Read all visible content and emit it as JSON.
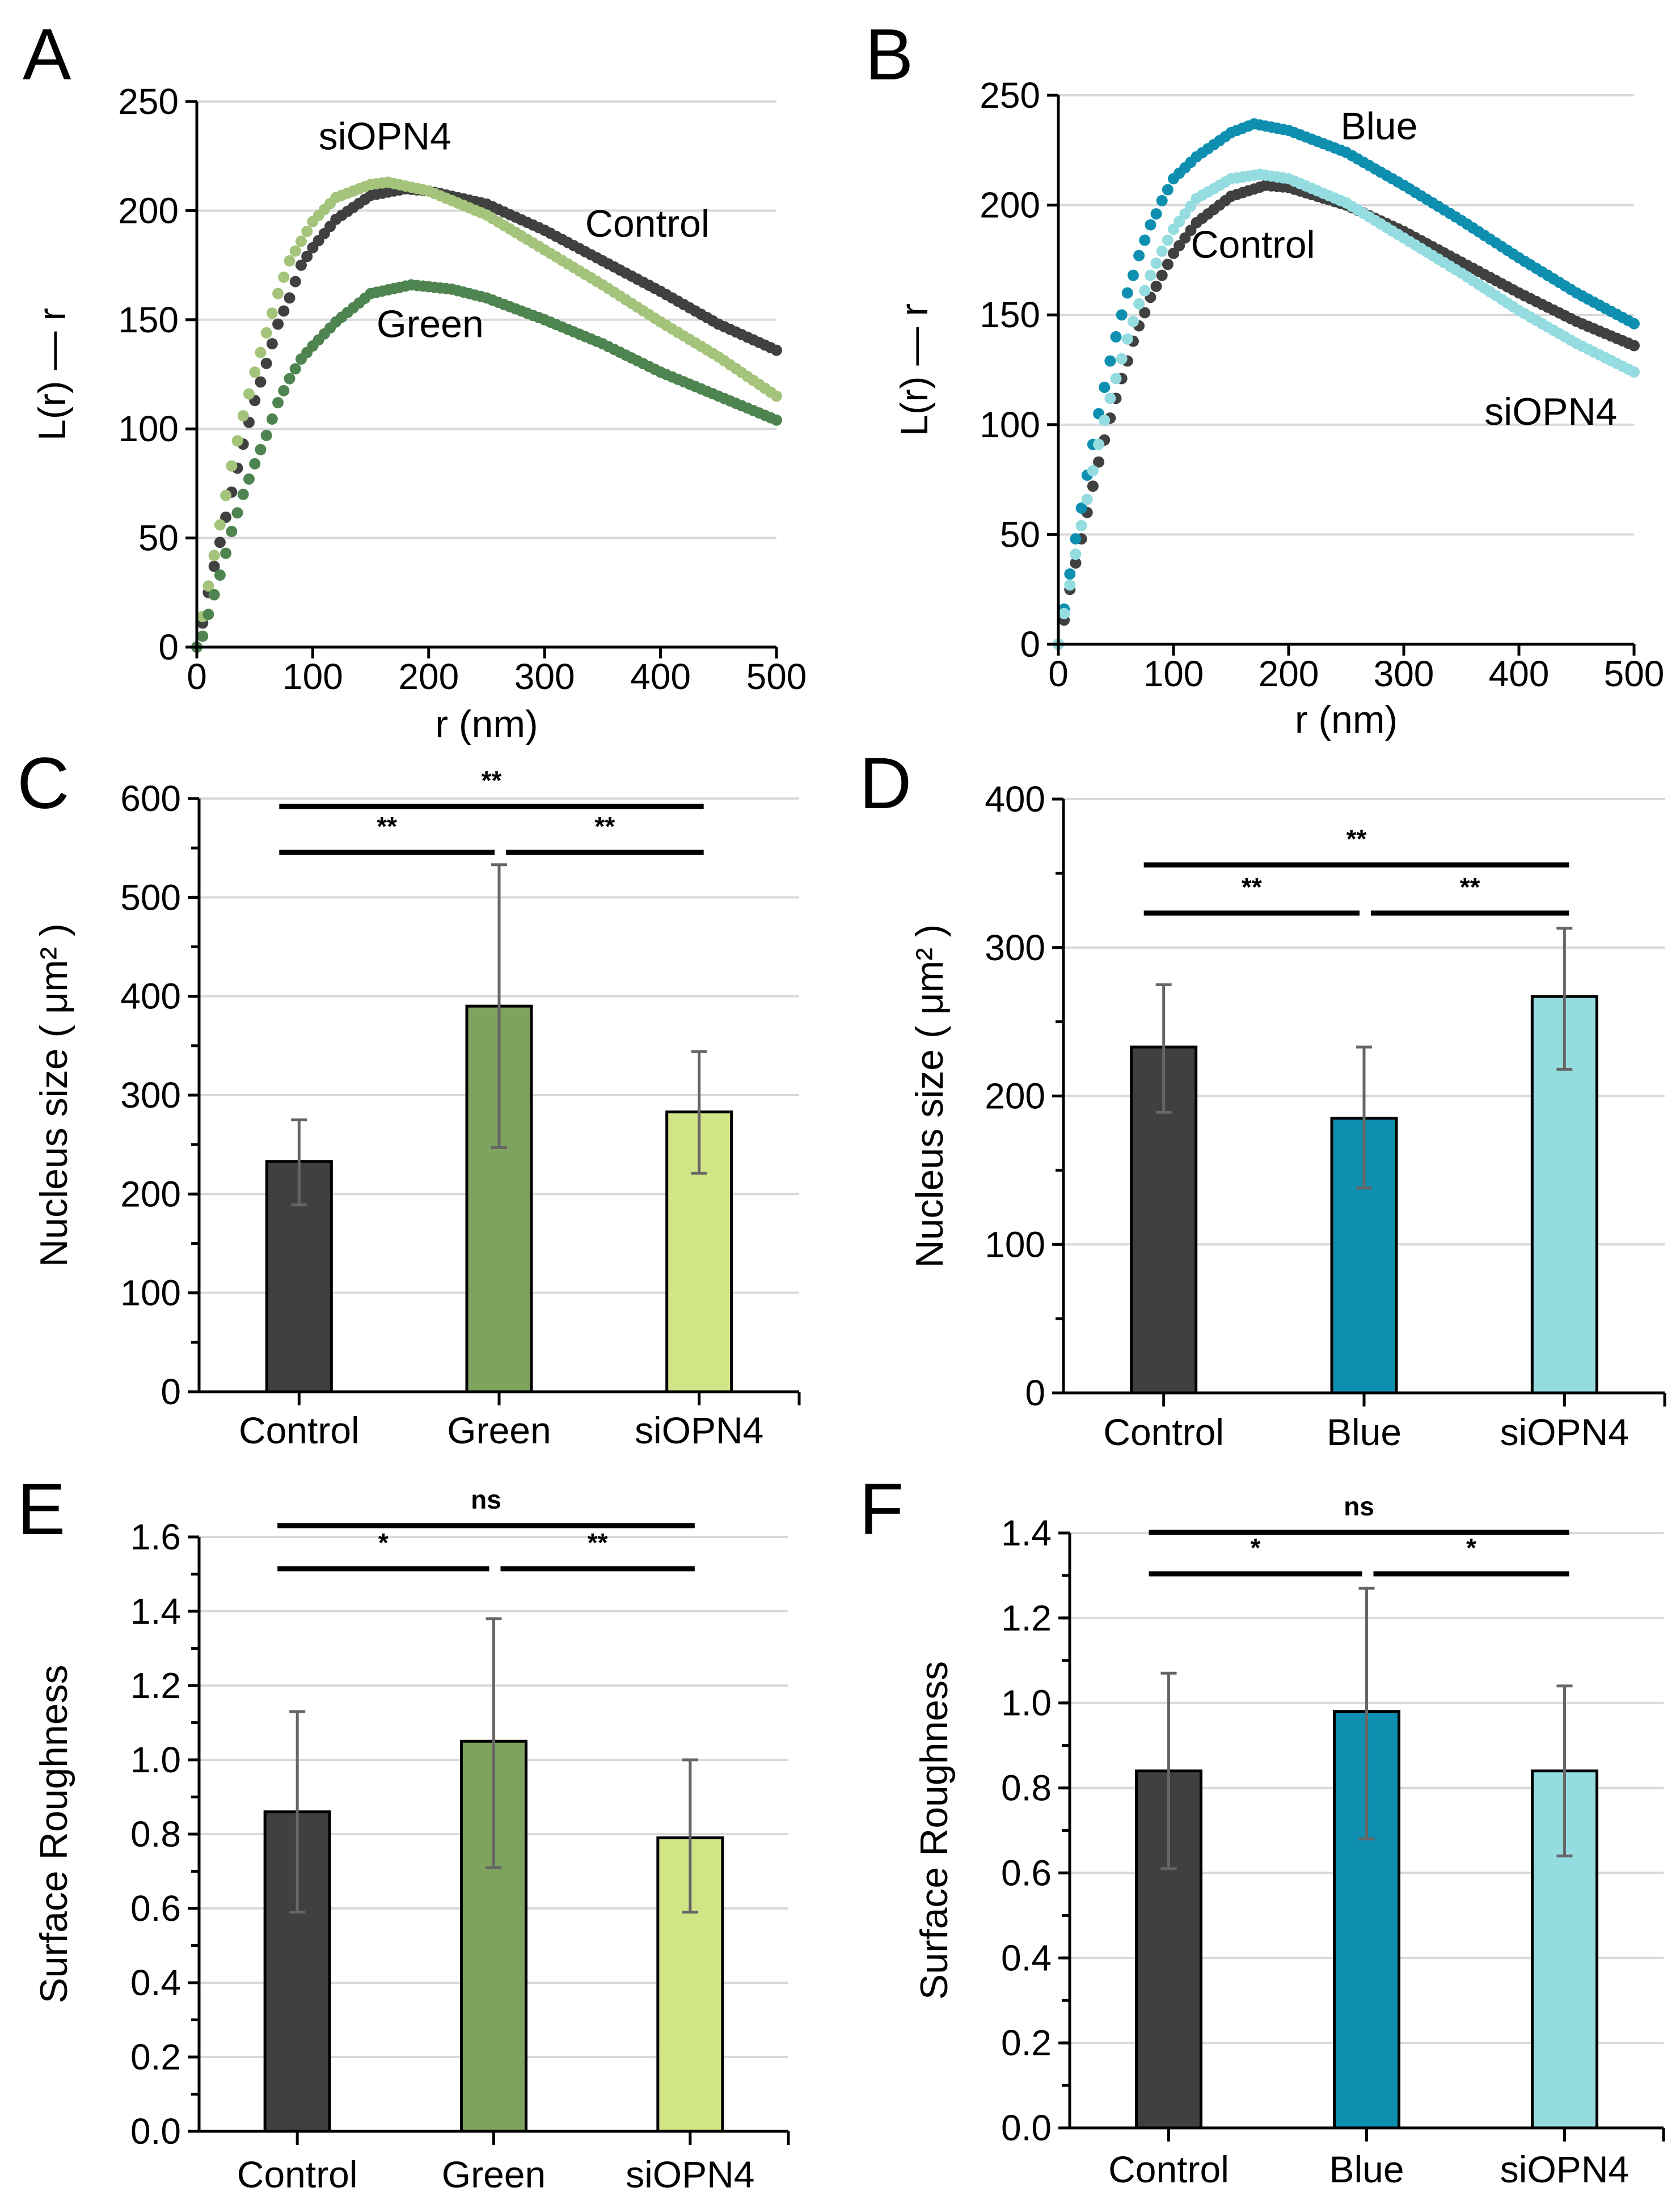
{
  "figure": {
    "panels": [
      "A",
      "B",
      "C",
      "D",
      "E",
      "F"
    ]
  },
  "chart_data": [
    {
      "id": "A",
      "type": "scatter",
      "panel_label": "A",
      "title": "",
      "xlabel": "r (nm)",
      "ylabel": "L(r) — r",
      "xlim": [
        0,
        500
      ],
      "ylim": [
        0,
        250
      ],
      "xticks": [
        0,
        100,
        200,
        300,
        400,
        500
      ],
      "yticks": [
        0,
        50,
        100,
        150,
        200,
        250
      ],
      "grid": true,
      "x_step": 5,
      "series": [
        {
          "name": "Control",
          "color": "#404040",
          "points": [
            [
              0,
              0
            ],
            [
              5,
              11
            ],
            [
              10,
              25
            ],
            [
              15,
              37
            ],
            [
              20,
              48
            ],
            [
              30,
              71
            ],
            [
              40,
              93
            ],
            [
              50,
              113
            ],
            [
              60,
              130
            ],
            [
              70,
              148
            ],
            [
              80,
              160
            ],
            [
              90,
              175
            ],
            [
              100,
              183
            ],
            [
              120,
              196
            ],
            [
              150,
              207
            ],
            [
              180,
              210
            ],
            [
              200,
              209
            ],
            [
              250,
              203
            ],
            [
              300,
              191
            ],
            [
              350,
              177
            ],
            [
              400,
              163
            ],
            [
              450,
              148
            ],
            [
              500,
              136
            ]
          ]
        },
        {
          "name": "siOPN4",
          "color": "#A3C47A",
          "points": [
            [
              0,
              0
            ],
            [
              5,
              14
            ],
            [
              10,
              28
            ],
            [
              20,
              56
            ],
            [
              30,
              83
            ],
            [
              40,
              106
            ],
            [
              50,
              126
            ],
            [
              60,
              144
            ],
            [
              70,
              162
            ],
            [
              80,
              177
            ],
            [
              90,
              186
            ],
            [
              100,
              195
            ],
            [
              120,
              206
            ],
            [
              150,
              212
            ],
            [
              165,
              213
            ],
            [
              200,
              209
            ],
            [
              250,
              198
            ],
            [
              300,
              182
            ],
            [
              350,
              166
            ],
            [
              400,
              149
            ],
            [
              450,
              133
            ],
            [
              500,
              115
            ]
          ]
        },
        {
          "name": "Green",
          "color": "#4E8450",
          "points": [
            [
              0,
              0
            ],
            [
              5,
              5
            ],
            [
              10,
              15
            ],
            [
              15,
              24
            ],
            [
              20,
              33
            ],
            [
              25,
              43
            ],
            [
              30,
              53
            ],
            [
              40,
              70
            ],
            [
              50,
              84
            ],
            [
              60,
              97
            ],
            [
              70,
              112
            ],
            [
              80,
              123
            ],
            [
              90,
              132
            ],
            [
              100,
              138
            ],
            [
              120,
              149
            ],
            [
              150,
              162
            ],
            [
              185,
              166
            ],
            [
              220,
              164
            ],
            [
              250,
              160
            ],
            [
              300,
              150
            ],
            [
              350,
              139
            ],
            [
              400,
              126
            ],
            [
              450,
              115
            ],
            [
              500,
              104
            ]
          ]
        }
      ],
      "annotations": [
        {
          "text": "siOPN4",
          "x": 105,
          "y": 228
        },
        {
          "text": "Control",
          "x": 335,
          "y": 188
        },
        {
          "text": "Green",
          "x": 155,
          "y": 142
        }
      ]
    },
    {
      "id": "B",
      "type": "scatter",
      "panel_label": "B",
      "title": "",
      "xlabel": "r (nm)",
      "ylabel": "L(r) — r",
      "xlim": [
        0,
        500
      ],
      "ylim": [
        0,
        250
      ],
      "xticks": [
        0,
        100,
        200,
        300,
        400,
        500
      ],
      "yticks": [
        0,
        50,
        100,
        150,
        200,
        250
      ],
      "grid": true,
      "x_step": 5,
      "series": [
        {
          "name": "Control",
          "color": "#404040",
          "points": [
            [
              0,
              0
            ],
            [
              5,
              11
            ],
            [
              10,
              25
            ],
            [
              15,
              37
            ],
            [
              20,
              48
            ],
            [
              25,
              60
            ],
            [
              30,
              72
            ],
            [
              35,
              83
            ],
            [
              40,
              93
            ],
            [
              45,
              103
            ],
            [
              50,
              112
            ],
            [
              55,
              121
            ],
            [
              60,
              129
            ],
            [
              65,
              138
            ],
            [
              70,
              145
            ],
            [
              75,
              151
            ],
            [
              80,
              158
            ],
            [
              90,
              168
            ],
            [
              100,
              178
            ],
            [
              120,
              192
            ],
            [
              150,
              204
            ],
            [
              180,
              209
            ],
            [
              200,
              208
            ],
            [
              250,
              200
            ],
            [
              300,
              188
            ],
            [
              350,
              174
            ],
            [
              400,
              160
            ],
            [
              450,
              147
            ],
            [
              500,
              136
            ]
          ]
        },
        {
          "name": "Blue",
          "color": "#0E8FB0",
          "points": [
            [
              0,
              0
            ],
            [
              5,
              16
            ],
            [
              10,
              32
            ],
            [
              15,
              48
            ],
            [
              20,
              62
            ],
            [
              25,
              77
            ],
            [
              30,
              91
            ],
            [
              35,
              105
            ],
            [
              40,
              117
            ],
            [
              45,
              129
            ],
            [
              50,
              140
            ],
            [
              55,
              150
            ],
            [
              60,
              160
            ],
            [
              65,
              168
            ],
            [
              70,
              177
            ],
            [
              75,
              184
            ],
            [
              80,
              191
            ],
            [
              85,
              196
            ],
            [
              90,
              202
            ],
            [
              100,
              212
            ],
            [
              120,
              222
            ],
            [
              150,
              233
            ],
            [
              170,
              237
            ],
            [
              200,
              234
            ],
            [
              250,
              224
            ],
            [
              300,
              209
            ],
            [
              350,
              193
            ],
            [
              400,
              176
            ],
            [
              450,
              160
            ],
            [
              500,
              146
            ]
          ]
        },
        {
          "name": "siOPN4",
          "color": "#94DCE0",
          "points": [
            [
              0,
              0
            ],
            [
              5,
              14
            ],
            [
              10,
              27
            ],
            [
              15,
              41
            ],
            [
              20,
              54
            ],
            [
              25,
              66
            ],
            [
              30,
              79
            ],
            [
              35,
              91
            ],
            [
              40,
              102
            ],
            [
              45,
              112
            ],
            [
              50,
              121
            ],
            [
              55,
              130
            ],
            [
              60,
              139
            ],
            [
              65,
              147
            ],
            [
              70,
              155
            ],
            [
              75,
              161
            ],
            [
              80,
              168
            ],
            [
              90,
              179
            ],
            [
              100,
              189
            ],
            [
              120,
              203
            ],
            [
              150,
              212
            ],
            [
              175,
              214
            ],
            [
              200,
              212
            ],
            [
              250,
              201
            ],
            [
              300,
              185
            ],
            [
              350,
              169
            ],
            [
              400,
              152
            ],
            [
              450,
              137
            ],
            [
              500,
              124
            ]
          ]
        }
      ],
      "annotations": [
        {
          "text": "Blue",
          "x": 245,
          "y": 230
        },
        {
          "text": "Control",
          "x": 115,
          "y": 176
        },
        {
          "text": "siOPN4",
          "x": 370,
          "y": 100
        }
      ]
    },
    {
      "id": "C",
      "type": "bar",
      "panel_label": "C",
      "title": "",
      "xlabel": "",
      "ylabel": "Nucleus size ( μm² )",
      "categories": [
        "Control",
        "Green",
        "siOPN4"
      ],
      "values": [
        233,
        390,
        283
      ],
      "error_low": [
        189,
        247,
        221
      ],
      "error_high": [
        275,
        533,
        344
      ],
      "colors": [
        "#404040",
        "#7EA35E",
        "#D1E486"
      ],
      "ylim": [
        0,
        600
      ],
      "yticks": [
        0,
        100,
        200,
        300,
        400,
        500,
        600
      ],
      "minor_tick_step": 50,
      "grid": true,
      "significance": [
        {
          "from": 0,
          "to": 2,
          "label": "**",
          "level": "top"
        },
        {
          "from": 0,
          "to": 1,
          "label": "**",
          "level": "lower"
        },
        {
          "from": 1,
          "to": 2,
          "label": "**",
          "level": "lower"
        }
      ]
    },
    {
      "id": "D",
      "type": "bar",
      "panel_label": "D",
      "title": "",
      "xlabel": "",
      "ylabel": "Nucleus size ( μm² )",
      "categories": [
        "Control",
        "Blue",
        "siOPN4"
      ],
      "values": [
        233,
        185,
        267
      ],
      "error_low": [
        189,
        138,
        218
      ],
      "error_high": [
        275,
        233,
        313
      ],
      "colors": [
        "#404040",
        "#0E8FB0",
        "#94DCE0"
      ],
      "ylim": [
        0,
        400
      ],
      "yticks": [
        0,
        100,
        200,
        300,
        400
      ],
      "minor_tick_step": 50,
      "grid": true,
      "significance": [
        {
          "from": 0,
          "to": 2,
          "label": "**",
          "level": "top"
        },
        {
          "from": 0,
          "to": 1,
          "label": "**",
          "level": "lower"
        },
        {
          "from": 1,
          "to": 2,
          "label": "**",
          "level": "lower"
        }
      ]
    },
    {
      "id": "E",
      "type": "bar",
      "panel_label": "E",
      "title": "",
      "xlabel": "",
      "ylabel": "Surface Roughness",
      "categories": [
        "Control",
        "Green",
        "siOPN4"
      ],
      "values": [
        0.86,
        1.05,
        0.79
      ],
      "error_low": [
        0.59,
        0.71,
        0.59
      ],
      "error_high": [
        1.13,
        1.38,
        1.0
      ],
      "colors": [
        "#404040",
        "#7EA35E",
        "#D1E486"
      ],
      "ylim": [
        0,
        1.6
      ],
      "yticks": [
        "0.0",
        "0.2",
        "0.4",
        "0.6",
        "0.8",
        "1.0",
        "1.2",
        "1.4",
        "1.6"
      ],
      "minor_tick_step": 0.1,
      "grid": true,
      "significance": [
        {
          "from": 0,
          "to": 2,
          "label": "ns",
          "level": "top"
        },
        {
          "from": 0,
          "to": 1,
          "label": "*",
          "level": "lower"
        },
        {
          "from": 1,
          "to": 2,
          "label": "**",
          "level": "lower"
        }
      ]
    },
    {
      "id": "F",
      "type": "bar",
      "panel_label": "F",
      "title": "",
      "xlabel": "",
      "ylabel": "Surface Roughness",
      "categories": [
        "Control",
        "Blue",
        "siOPN4"
      ],
      "values": [
        0.84,
        0.98,
        0.84
      ],
      "error_low": [
        0.61,
        0.68,
        0.64
      ],
      "error_high": [
        1.07,
        1.27,
        1.04
      ],
      "colors": [
        "#404040",
        "#0E8FB0",
        "#94DCE0"
      ],
      "ylim": [
        0,
        1.4
      ],
      "yticks": [
        "0.0",
        "0.2",
        "0.4",
        "0.6",
        "0.8",
        "1.0",
        "1.2",
        "1.4"
      ],
      "minor_tick_step": 0.1,
      "grid": true,
      "significance": [
        {
          "from": 0,
          "to": 2,
          "label": "ns",
          "level": "top"
        },
        {
          "from": 0,
          "to": 1,
          "label": "*",
          "level": "lower"
        },
        {
          "from": 1,
          "to": 2,
          "label": "*",
          "level": "lower"
        }
      ]
    }
  ]
}
